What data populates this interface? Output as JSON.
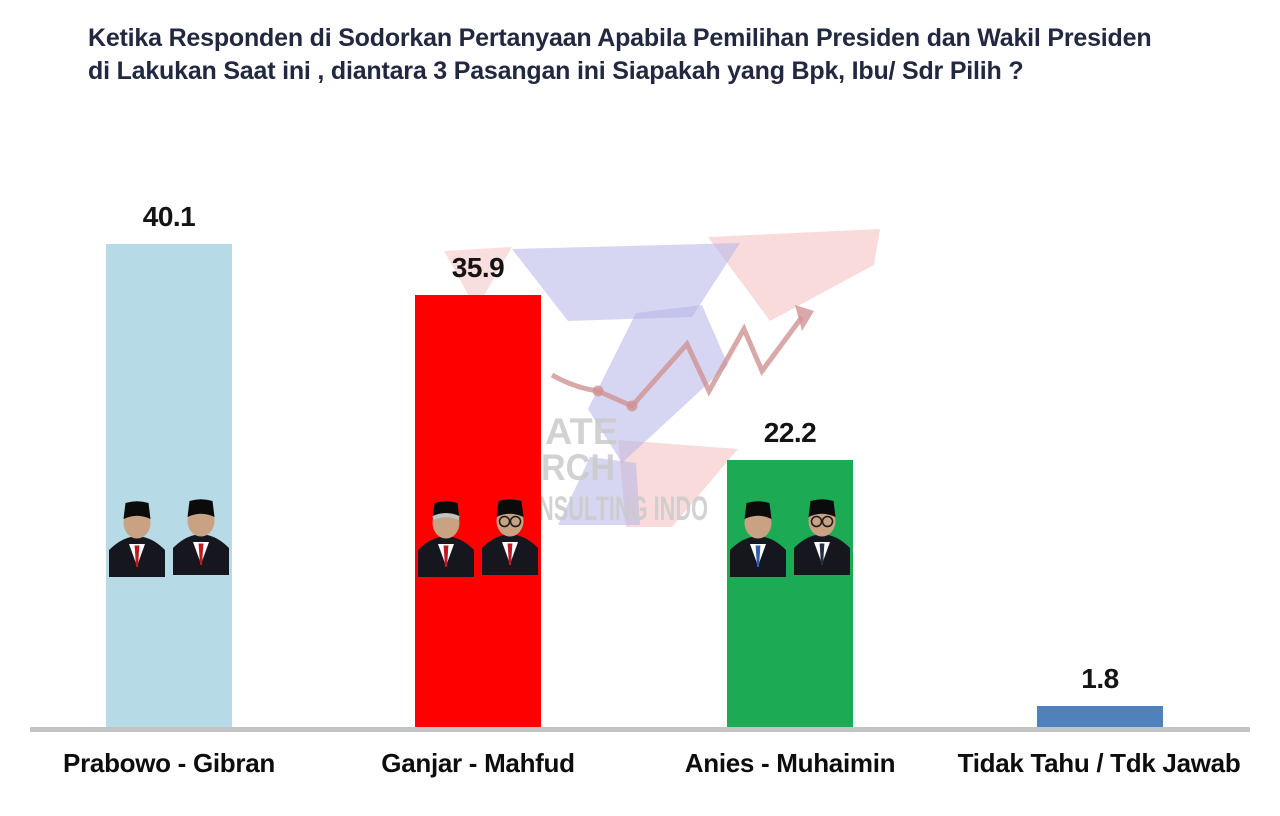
{
  "header": {
    "title_line1": "Ketika Responden di Sodorkan Pertanyaan Apabila Pemilihan Presiden dan Wakil Presiden",
    "title_line2": "di Lakukan Saat ini , diantara  3 Pasangan ini Siapakah yang Bpk, Ibu/ Sdr Pilih ?"
  },
  "chart_data": {
    "type": "bar",
    "title": "Ketika Responden di Sodorkan Pertanyaan Apabila Pemilihan Presiden dan Wakil Presiden di Lakukan Saat ini , diantara 3 Pasangan ini Siapakah yang Bpk, Ibu/ Sdr Pilih ?",
    "categories": [
      "Prabowo - Gibran",
      "Ganjar - Mahfud",
      "Anies -  Muhaimin",
      "Tidak Tahu / Tdk Jawab"
    ],
    "values": [
      40.1,
      35.9,
      22.2,
      1.8
    ],
    "bar_colors": [
      "#b6dbe7",
      "#fe0000",
      "#1cab54",
      "#4f81bd"
    ],
    "bar_photos": [
      "prabowo-gibran-pair-photo",
      "ganjar-mahfud-pair-photo",
      "anies-muhaimin-pair-photo",
      null
    ],
    "value_label_color": "#141414",
    "category_label_color": "#0d0d0d",
    "axis_line_color": "#c3c3c3",
    "ylim": [
      0,
      45
    ],
    "grid": false,
    "legend": "none",
    "value_labels_shown": true
  },
  "watermark": {
    "text_lines": [
      "ATE",
      "RCH",
      "NSULTING INDO"
    ],
    "text_color": "#cbcbcb",
    "pink": "#f4bdbf",
    "purple": "#b5b5e8",
    "trend_line_color": "#cf9292"
  }
}
